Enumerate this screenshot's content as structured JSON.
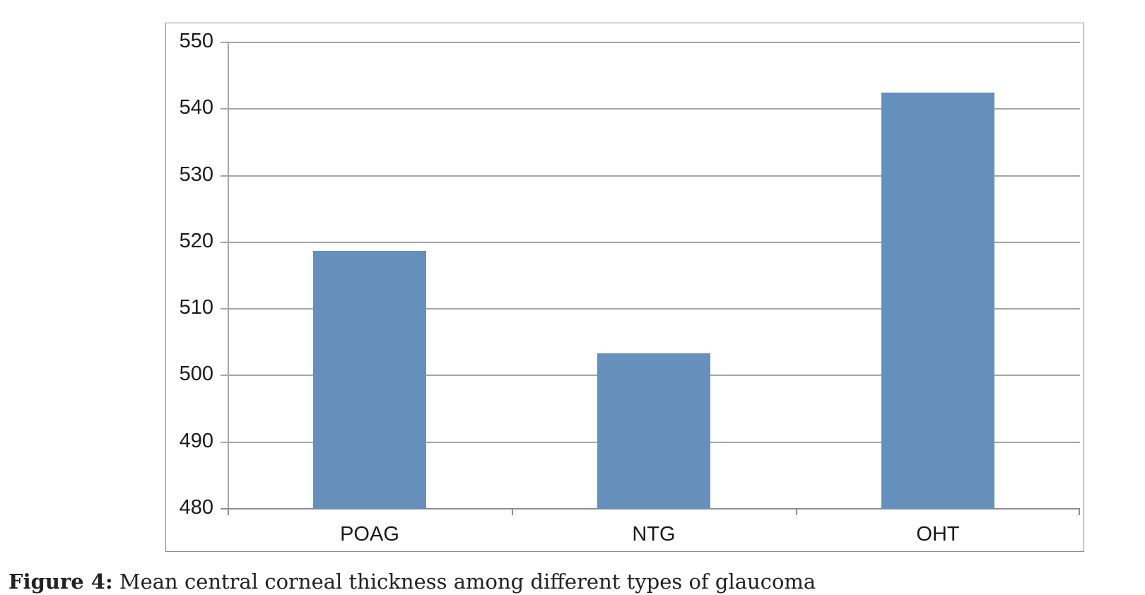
{
  "chart_data": {
    "type": "bar",
    "title": "",
    "categories": [
      "POAG",
      "NTG",
      "OHT"
    ],
    "values": [
      518.7,
      503.3,
      542.5
    ],
    "xlabel": "",
    "ylabel": "",
    "ylim": [
      480,
      550
    ],
    "yticks": [
      480,
      490,
      500,
      510,
      520,
      530,
      540,
      550
    ],
    "grid": true,
    "legend": null,
    "bar_color": "#6690bc"
  },
  "axis": {
    "yticks": [
      "550",
      "540",
      "530",
      "520",
      "510",
      "500",
      "490",
      "480"
    ],
    "xticks": [
      "POAG",
      "NTG",
      "OHT"
    ]
  },
  "caption": {
    "label": "Figure 4:",
    "text": " Mean central corneal thickness among different types of glaucoma"
  }
}
